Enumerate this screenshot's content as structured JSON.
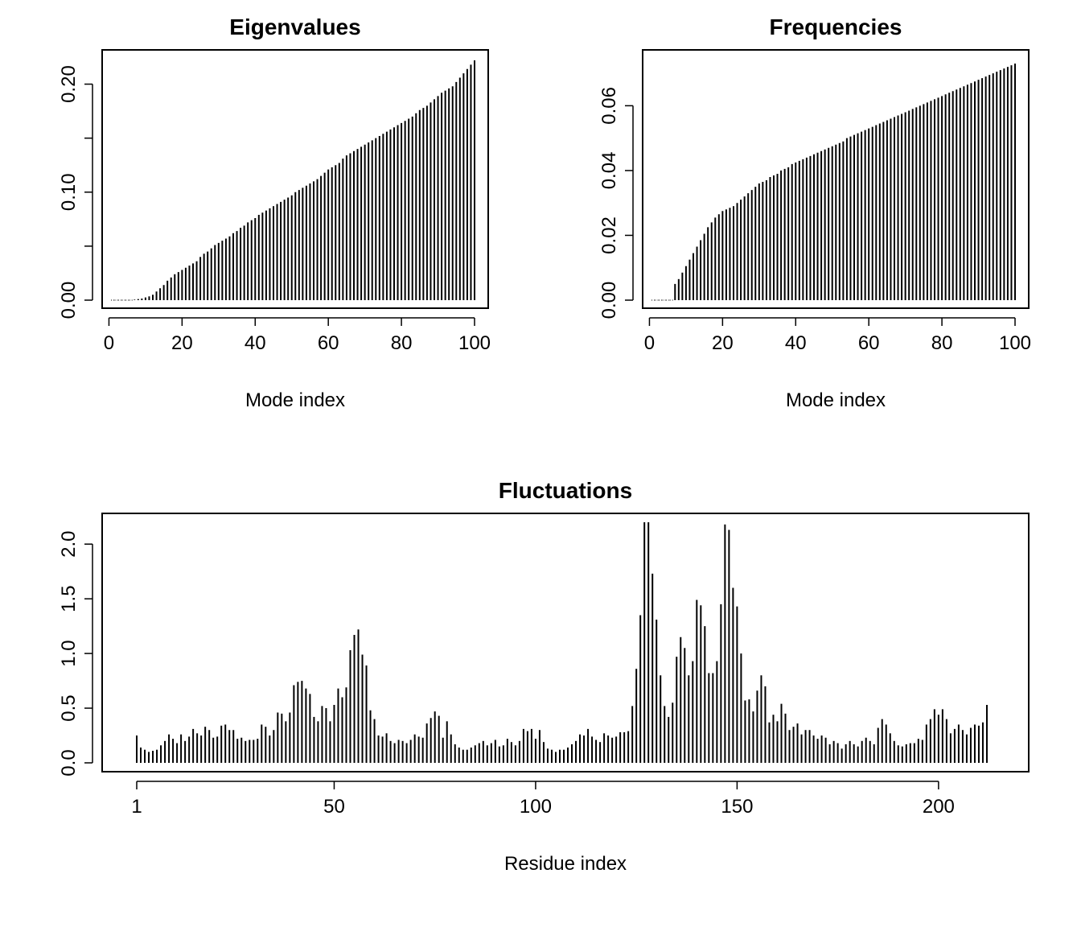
{
  "chart_data": [
    {
      "id": "eigenvalues",
      "type": "bar",
      "title": "Eigenvalues",
      "xlabel": "Mode index",
      "ylabel": "",
      "xlim": [
        1,
        100
      ],
      "ylim": [
        0,
        0.225
      ],
      "xticks": [
        0,
        20,
        40,
        60,
        80,
        100
      ],
      "xtick_labels": [
        "0",
        "20",
        "40",
        "60",
        "80",
        "100"
      ],
      "yticks": [
        0.0,
        0.05,
        0.1,
        0.15,
        0.2
      ],
      "ytick_labels": [
        "0.00",
        "",
        "0.10",
        "",
        "0.20"
      ],
      "x_start": 1,
      "values": [
        0,
        0,
        0,
        0,
        0,
        0,
        0.0005,
        0.001,
        0.0015,
        0.0025,
        0.0035,
        0.005,
        0.008,
        0.011,
        0.014,
        0.018,
        0.021,
        0.024,
        0.026,
        0.028,
        0.03,
        0.032,
        0.034,
        0.036,
        0.04,
        0.043,
        0.045,
        0.048,
        0.051,
        0.053,
        0.055,
        0.057,
        0.059,
        0.062,
        0.064,
        0.067,
        0.069,
        0.072,
        0.074,
        0.076,
        0.079,
        0.081,
        0.083,
        0.085,
        0.087,
        0.089,
        0.091,
        0.093,
        0.095,
        0.097,
        0.1,
        0.102,
        0.104,
        0.106,
        0.108,
        0.11,
        0.112,
        0.115,
        0.118,
        0.121,
        0.123,
        0.125,
        0.127,
        0.131,
        0.134,
        0.136,
        0.138,
        0.14,
        0.142,
        0.144,
        0.146,
        0.148,
        0.15,
        0.152,
        0.154,
        0.156,
        0.158,
        0.16,
        0.162,
        0.164,
        0.166,
        0.168,
        0.17,
        0.173,
        0.176,
        0.178,
        0.18,
        0.183,
        0.186,
        0.189,
        0.192,
        0.194,
        0.196,
        0.198,
        0.202,
        0.206,
        0.21,
        0.214,
        0.218,
        0.222
      ]
    },
    {
      "id": "frequencies",
      "type": "bar",
      "title": "Frequencies",
      "xlabel": "Mode index",
      "ylabel": "",
      "xlim": [
        1,
        100
      ],
      "ylim": [
        0,
        0.075
      ],
      "xticks": [
        0,
        20,
        40,
        60,
        80,
        100
      ],
      "xtick_labels": [
        "0",
        "20",
        "40",
        "60",
        "80",
        "100"
      ],
      "yticks": [
        0.0,
        0.02,
        0.04,
        0.06
      ],
      "ytick_labels": [
        "0.00",
        "0.02",
        "0.04",
        "0.06"
      ],
      "x_start": 1,
      "values": [
        0,
        0,
        0,
        0,
        0,
        0,
        0.005,
        0.0065,
        0.0085,
        0.0105,
        0.0125,
        0.0145,
        0.0165,
        0.0185,
        0.0205,
        0.0225,
        0.024,
        0.0255,
        0.0265,
        0.0275,
        0.028,
        0.0285,
        0.029,
        0.03,
        0.031,
        0.032,
        0.033,
        0.034,
        0.035,
        0.036,
        0.0365,
        0.037,
        0.038,
        0.0385,
        0.039,
        0.04,
        0.0405,
        0.041,
        0.042,
        0.0425,
        0.043,
        0.0435,
        0.044,
        0.0445,
        0.045,
        0.0455,
        0.046,
        0.0465,
        0.047,
        0.0475,
        0.048,
        0.0485,
        0.049,
        0.05,
        0.0505,
        0.051,
        0.0515,
        0.052,
        0.0525,
        0.053,
        0.0535,
        0.054,
        0.0545,
        0.055,
        0.0555,
        0.056,
        0.0565,
        0.057,
        0.0575,
        0.058,
        0.0585,
        0.059,
        0.0595,
        0.06,
        0.0605,
        0.061,
        0.0615,
        0.062,
        0.0625,
        0.063,
        0.0635,
        0.064,
        0.0645,
        0.065,
        0.0655,
        0.066,
        0.0665,
        0.067,
        0.0675,
        0.068,
        0.0685,
        0.069,
        0.0695,
        0.07,
        0.0705,
        0.071,
        0.0715,
        0.072,
        0.0725,
        0.073
      ]
    },
    {
      "id": "fluctuations",
      "type": "bar",
      "title": "Fluctuations",
      "xlabel": "Residue index",
      "ylabel": "",
      "xlim": [
        1,
        214
      ],
      "ylim": [
        0,
        2.2
      ],
      "xticks": [
        1,
        50,
        100,
        150,
        200
      ],
      "xtick_labels": [
        "1",
        "50",
        "100",
        "150",
        "200"
      ],
      "yticks": [
        0.0,
        0.5,
        1.0,
        1.5,
        2.0
      ],
      "ytick_labels": [
        "0.0",
        "0.5",
        "1.0",
        "1.5",
        "2.0"
      ],
      "x_start": 1,
      "values": [
        0.25,
        0.14,
        0.12,
        0.1,
        0.11,
        0.12,
        0.16,
        0.2,
        0.26,
        0.22,
        0.18,
        0.26,
        0.2,
        0.24,
        0.31,
        0.27,
        0.25,
        0.33,
        0.3,
        0.23,
        0.24,
        0.34,
        0.35,
        0.3,
        0.3,
        0.22,
        0.23,
        0.2,
        0.21,
        0.21,
        0.22,
        0.35,
        0.33,
        0.25,
        0.3,
        0.46,
        0.45,
        0.38,
        0.46,
        0.71,
        0.74,
        0.75,
        0.68,
        0.63,
        0.42,
        0.38,
        0.52,
        0.5,
        0.38,
        0.53,
        0.68,
        0.6,
        0.69,
        1.03,
        1.17,
        1.22,
        0.99,
        0.89,
        0.48,
        0.4,
        0.25,
        0.24,
        0.27,
        0.2,
        0.18,
        0.21,
        0.2,
        0.18,
        0.21,
        0.26,
        0.24,
        0.23,
        0.36,
        0.41,
        0.47,
        0.43,
        0.23,
        0.38,
        0.26,
        0.17,
        0.14,
        0.12,
        0.12,
        0.14,
        0.16,
        0.18,
        0.2,
        0.16,
        0.18,
        0.21,
        0.15,
        0.16,
        0.22,
        0.19,
        0.16,
        0.2,
        0.31,
        0.29,
        0.31,
        0.22,
        0.3,
        0.19,
        0.13,
        0.12,
        0.1,
        0.12,
        0.12,
        0.14,
        0.17,
        0.2,
        0.26,
        0.25,
        0.31,
        0.24,
        0.21,
        0.19,
        0.27,
        0.25,
        0.23,
        0.24,
        0.28,
        0.28,
        0.29,
        0.52,
        0.86,
        1.35,
        2.2,
        2.2,
        1.73,
        1.31,
        0.8,
        0.52,
        0.42,
        0.55,
        0.97,
        1.15,
        1.05,
        0.8,
        0.93,
        1.49,
        1.44,
        1.25,
        0.82,
        0.82,
        0.93,
        1.45,
        2.18,
        2.13,
        1.6,
        1.43,
        1.0,
        0.57,
        0.58,
        0.47,
        0.66,
        0.8,
        0.7,
        0.37,
        0.44,
        0.38,
        0.54,
        0.45,
        0.3,
        0.33,
        0.36,
        0.26,
        0.3,
        0.3,
        0.25,
        0.22,
        0.25,
        0.23,
        0.17,
        0.2,
        0.18,
        0.13,
        0.17,
        0.2,
        0.17,
        0.15,
        0.2,
        0.23,
        0.2,
        0.17,
        0.32,
        0.4,
        0.35,
        0.27,
        0.2,
        0.16,
        0.15,
        0.17,
        0.18,
        0.18,
        0.22,
        0.21,
        0.35,
        0.4,
        0.49,
        0.44,
        0.49,
        0.4,
        0.27,
        0.31,
        0.35,
        0.3,
        0.26,
        0.32,
        0.35,
        0.34,
        0.37,
        0.53
      ]
    }
  ]
}
